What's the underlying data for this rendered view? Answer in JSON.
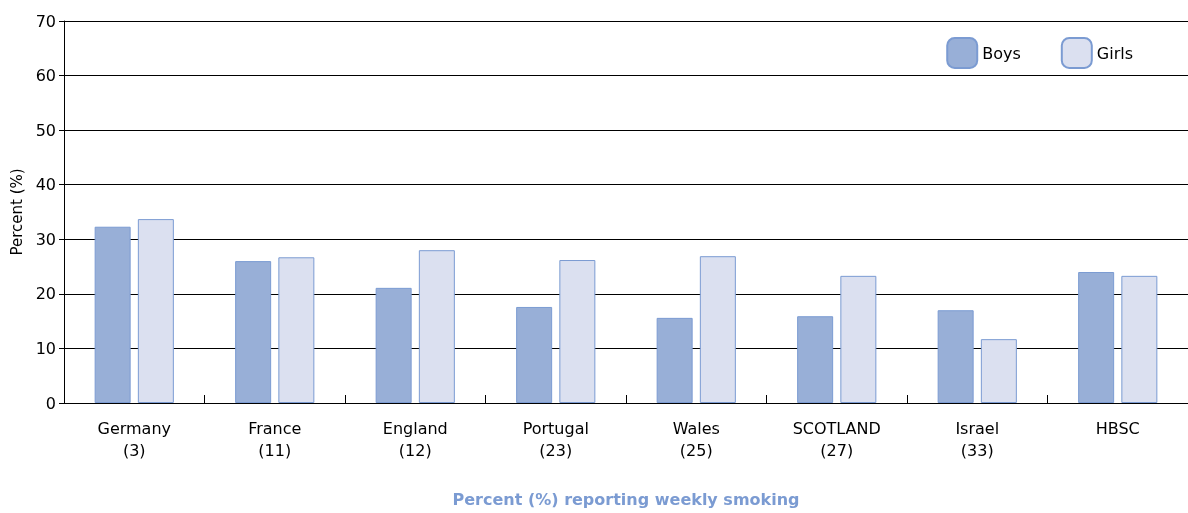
{
  "chart_data": {
    "type": "bar",
    "xlabel": "Percent (%) reporting weekly smoking",
    "ylabel": "Percent (%)",
    "categories": [
      "Germany\n(3)",
      "France\n(11)",
      "England\n(12)",
      "Portugal\n(23)",
      "Wales\n(25)",
      "SCOTLAND\n(27)",
      "Israel\n(33)",
      "HBSC"
    ],
    "series": [
      {
        "name": "Boys",
        "color": "#98afd7",
        "values": [
          32.3,
          26.0,
          21.1,
          17.6,
          15.6,
          15.9,
          17.0,
          24.0
        ]
      },
      {
        "name": "Girls",
        "color": "#dbe0f0",
        "values": [
          33.7,
          26.7,
          28.0,
          26.2,
          26.9,
          23.3,
          11.7,
          23.3
        ]
      }
    ],
    "ylim": [
      0,
      70
    ],
    "yticks": [
      0,
      10,
      20,
      30,
      40,
      50,
      60,
      70
    ],
    "grid": "y",
    "legend": "top right"
  }
}
